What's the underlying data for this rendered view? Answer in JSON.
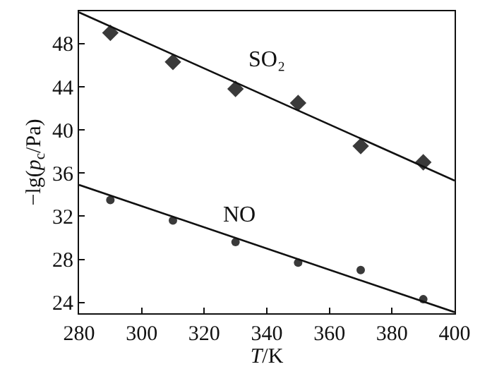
{
  "chart_data": {
    "type": "scatter",
    "xlabel": "T/K",
    "ylabel": "−lg(p$_{c}$/Pa)",
    "xlim": [
      280,
      400
    ],
    "xticks": [
      280,
      300,
      320,
      340,
      360,
      380,
      400
    ],
    "ylim": [
      23,
      51
    ],
    "yticks": [
      24,
      28,
      32,
      36,
      40,
      44,
      48
    ],
    "grid": false,
    "legend": false,
    "series": [
      {
        "name": "SO₂",
        "marker": "diamond",
        "color": "#3a3a3a",
        "x": [
          290,
          310,
          330,
          350,
          370,
          390
        ],
        "values": [
          49.0,
          46.3,
          43.8,
          42.5,
          38.5,
          37.0
        ]
      },
      {
        "type": "line",
        "color": "#111111",
        "x": [
          280,
          400
        ],
        "values": [
          50.9,
          35.3
        ]
      },
      {
        "name": "NO",
        "marker": "circle",
        "color": "#3a3a3a",
        "x": [
          290,
          310,
          330,
          350,
          370,
          390
        ],
        "values": [
          33.5,
          31.6,
          29.6,
          27.7,
          27.0,
          24.3
        ]
      },
      {
        "type": "line",
        "color": "#111111",
        "x": [
          280,
          400
        ],
        "values": [
          34.9,
          23.1
        ]
      }
    ]
  }
}
